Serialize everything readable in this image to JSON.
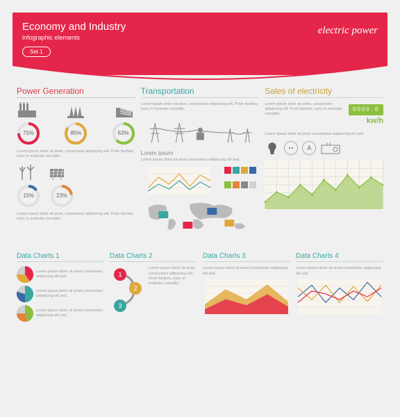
{
  "header": {
    "title": "Economy and Industry",
    "subtitle": "infographic elements",
    "badge": "Set 1",
    "right": "electric power"
  },
  "colors": {
    "red": "#e5264a",
    "teal": "#3aa6a0",
    "gold": "#e0a83a",
    "blue": "#3a6aa6",
    "green": "#8bbf3f",
    "orange": "#e0853a",
    "gray": "#888888",
    "light_gray": "#d0d0d0"
  },
  "lorem_short": "Lorem ipsum dolor sit amet, consectetur adipiscing elit. Proin facilisis, nunc in molestie convallis.",
  "lorem_tiny": "Lorem ipsum dolor sit amet consectetur adipiscing elit sed.",
  "power_gen": {
    "title": "Power Generation",
    "donuts1": [
      {
        "pct": 75,
        "color": "#e5264a"
      },
      {
        "pct": 85,
        "color": "#e0a83a"
      },
      {
        "pct": 63,
        "color": "#8bbf3f"
      }
    ],
    "donuts2": [
      {
        "pct": 15,
        "color": "#3a6aa6"
      },
      {
        "pct": 23,
        "color": "#e0853a"
      }
    ]
  },
  "transport": {
    "title": "Transportation",
    "sub": "Lorem Ipsum"
  },
  "sales": {
    "title": "Sales of electricity",
    "meter": "0000.0",
    "unit": "kw/h",
    "area_chart": {
      "x": [
        0,
        1,
        2,
        3,
        4,
        5,
        6,
        7,
        8,
        9,
        10
      ],
      "y": [
        15,
        35,
        25,
        50,
        30,
        60,
        40,
        70,
        45,
        65,
        50
      ],
      "fill": "#a8cc6e",
      "stroke": "#8bbf3f",
      "grid_color": "#c8d4d2",
      "bg": "#f8f4ee"
    }
  },
  "swatches": [
    "#e5264a",
    "#3aa6a0",
    "#e0a83a",
    "#3a6aa6",
    "#8bbf3f",
    "#e0853a",
    "#888888",
    "#d0d0d0"
  ],
  "charts": {
    "c1": {
      "title": "Data Charts 1",
      "pies": [
        {
          "slices": [
            40,
            35,
            25
          ],
          "colors": [
            "#e5264a",
            "#e0a83a",
            "#d0d0d0"
          ]
        },
        {
          "slices": [
            50,
            30,
            20
          ],
          "colors": [
            "#3aa6a0",
            "#3a6aa6",
            "#d0d0d0"
          ]
        },
        {
          "slices": [
            45,
            30,
            25
          ],
          "colors": [
            "#8bbf3f",
            "#e0853a",
            "#d0d0d0"
          ]
        }
      ]
    },
    "c2": {
      "title": "Data Charts 2",
      "steps": [
        "1",
        "2",
        "3"
      ],
      "step_colors": [
        "#e5264a",
        "#e0a83a",
        "#3aa6a0"
      ]
    },
    "c3": {
      "title": "Data Charts 3",
      "layers": [
        {
          "y": [
            20,
            50,
            30,
            60,
            25
          ],
          "c": "#e0a83a"
        },
        {
          "y": [
            10,
            30,
            18,
            40,
            15
          ],
          "c": "#e5264a"
        }
      ]
    },
    "c4": {
      "title": "Data Charts 4",
      "lines": [
        {
          "y": [
            30,
            50,
            20,
            45,
            25,
            55,
            30
          ],
          "c": "#3a6aa6"
        },
        {
          "y": [
            45,
            25,
            50,
            20,
            48,
            22,
            50
          ],
          "c": "#e0a83a"
        },
        {
          "y": [
            20,
            40,
            35,
            25,
            40,
            30,
            45
          ],
          "c": "#e5264a"
        }
      ]
    }
  }
}
